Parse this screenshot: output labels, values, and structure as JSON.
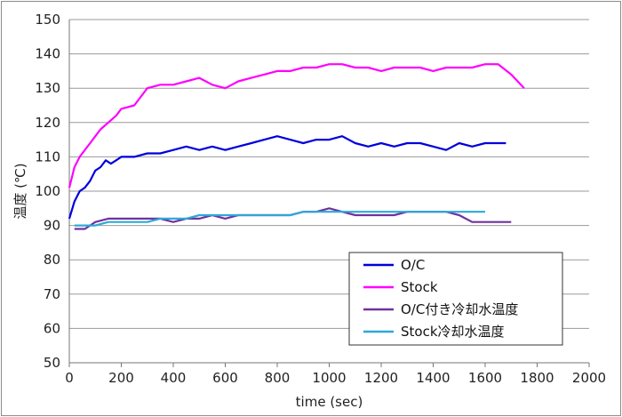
{
  "chart_data": {
    "type": "line",
    "title": "",
    "xlabel": "time (sec)",
    "ylabel": "温度 (℃)",
    "xlim": [
      0,
      2000
    ],
    "ylim": [
      50,
      150
    ],
    "xticks": [
      0,
      200,
      400,
      600,
      800,
      1000,
      1200,
      1400,
      1600,
      1800,
      2000
    ],
    "yticks": [
      50,
      60,
      70,
      80,
      90,
      100,
      110,
      120,
      130,
      140,
      150
    ],
    "grid": "horizontal",
    "legend_position": "bottom-right",
    "series": [
      {
        "name": "O/C",
        "color": "#0000dd",
        "x": [
          0,
          20,
          40,
          60,
          80,
          100,
          120,
          140,
          160,
          180,
          200,
          250,
          300,
          350,
          400,
          450,
          500,
          550,
          600,
          650,
          700,
          750,
          800,
          850,
          900,
          950,
          1000,
          1050,
          1100,
          1150,
          1200,
          1250,
          1300,
          1350,
          1400,
          1450,
          1500,
          1550,
          1600,
          1650,
          1680
        ],
        "values": [
          92,
          97,
          100,
          101,
          103,
          106,
          107,
          109,
          108,
          109,
          110,
          110,
          111,
          111,
          112,
          113,
          112,
          113,
          112,
          113,
          114,
          115,
          116,
          115,
          114,
          115,
          115,
          116,
          114,
          113,
          114,
          113,
          114,
          114,
          113,
          112,
          114,
          113,
          114,
          114,
          114
        ]
      },
      {
        "name": "Stock",
        "color": "#ff00ff",
        "x": [
          0,
          20,
          40,
          60,
          80,
          100,
          120,
          150,
          180,
          200,
          250,
          300,
          350,
          400,
          450,
          500,
          550,
          600,
          650,
          700,
          750,
          800,
          850,
          900,
          950,
          1000,
          1050,
          1100,
          1150,
          1200,
          1250,
          1300,
          1350,
          1400,
          1450,
          1500,
          1550,
          1600,
          1650,
          1700,
          1750
        ],
        "values": [
          101,
          107,
          110,
          112,
          114,
          116,
          118,
          120,
          122,
          124,
          125,
          130,
          131,
          131,
          132,
          133,
          131,
          130,
          132,
          133,
          134,
          135,
          135,
          136,
          136,
          137,
          137,
          136,
          136,
          135,
          136,
          136,
          136,
          135,
          136,
          136,
          136,
          137,
          137,
          134,
          130
        ]
      },
      {
        "name": "O/C付き冷却水温度",
        "color": "#7030a0",
        "x": [
          20,
          60,
          100,
          150,
          200,
          250,
          300,
          350,
          400,
          450,
          500,
          550,
          600,
          650,
          700,
          750,
          800,
          850,
          900,
          950,
          1000,
          1050,
          1100,
          1150,
          1200,
          1250,
          1300,
          1350,
          1400,
          1450,
          1500,
          1550,
          1600,
          1650,
          1700
        ],
        "values": [
          89,
          89,
          91,
          92,
          92,
          92,
          92,
          92,
          91,
          92,
          92,
          93,
          92,
          93,
          93,
          93,
          93,
          93,
          94,
          94,
          95,
          94,
          93,
          93,
          93,
          93,
          94,
          94,
          94,
          94,
          93,
          91,
          91,
          91,
          91
        ]
      },
      {
        "name": "Stock冷却水温度",
        "color": "#2ea8d8",
        "x": [
          20,
          60,
          100,
          150,
          200,
          250,
          300,
          350,
          400,
          450,
          500,
          550,
          600,
          650,
          700,
          750,
          800,
          850,
          900,
          950,
          1000,
          1050,
          1100,
          1150,
          1200,
          1250,
          1300,
          1350,
          1400,
          1450,
          1500,
          1550,
          1600
        ],
        "values": [
          90,
          90,
          90,
          91,
          91,
          91,
          91,
          92,
          92,
          92,
          93,
          93,
          93,
          93,
          93,
          93,
          93,
          93,
          94,
          94,
          94,
          94,
          94,
          94,
          94,
          94,
          94,
          94,
          94,
          94,
          94,
          94,
          94
        ]
      }
    ]
  }
}
